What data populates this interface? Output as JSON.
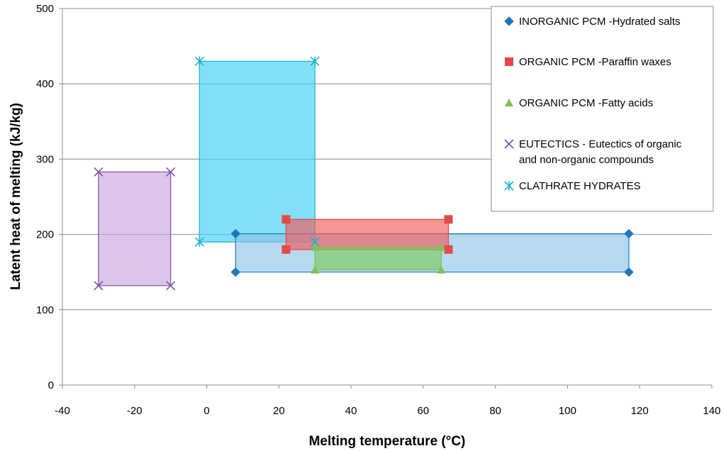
{
  "chart_data": {
    "type": "scatter",
    "title": "",
    "xlabel": "Melting temperature (°C)",
    "ylabel": "Latent heat of melting (kJ/kg)",
    "xlim": [
      -40,
      140
    ],
    "ylim": [
      0,
      500
    ],
    "x_ticks": [
      -40,
      -20,
      0,
      20,
      40,
      60,
      80,
      100,
      120,
      140
    ],
    "y_ticks": [
      0,
      100,
      200,
      300,
      400,
      500
    ],
    "grid": "horizontal",
    "legend_position": "top-right",
    "series": [
      {
        "name": "INORGANIC PCM -Hydrated salts",
        "legend_lines": [
          "INORGANIC PCM -Hydrated salts"
        ],
        "marker": "diamond",
        "color": "#1F77B8",
        "fill": "#8FC4E8",
        "points": [
          {
            "x": 8,
            "y": 150
          },
          {
            "x": 8,
            "y": 201
          },
          {
            "x": 117,
            "y": 201
          },
          {
            "x": 117,
            "y": 150
          }
        ]
      },
      {
        "name": "ORGANIC PCM -Paraffin waxes",
        "legend_lines": [
          "ORGANIC PCM -Paraffin waxes"
        ],
        "marker": "square",
        "color": "#E24A4A",
        "fill": "#F25A5A",
        "points": [
          {
            "x": 22,
            "y": 180
          },
          {
            "x": 22,
            "y": 220
          },
          {
            "x": 67,
            "y": 220
          },
          {
            "x": 67,
            "y": 180
          }
        ]
      },
      {
        "name": "ORGANIC PCM -Fatty acids",
        "legend_lines": [
          "ORGANIC PCM -Fatty acids"
        ],
        "marker": "triangle",
        "color": "#7DC255",
        "fill": "#7DCB5A",
        "points": [
          {
            "x": 30,
            "y": 153
          },
          {
            "x": 30,
            "y": 183
          },
          {
            "x": 65,
            "y": 183
          },
          {
            "x": 65,
            "y": 153
          }
        ]
      },
      {
        "name": "EUTECTICS - Eutectics of organic and non-organic compounds",
        "legend_lines": [
          "EUTECTICS - Eutectics of organic",
          "and non-organic compounds"
        ],
        "marker": "x",
        "color": "#7E4FA8",
        "fill": "#C8A6DB",
        "points": [
          {
            "x": -30,
            "y": 132
          },
          {
            "x": -30,
            "y": 283
          },
          {
            "x": -10,
            "y": 283
          },
          {
            "x": -10,
            "y": 132
          }
        ]
      },
      {
        "name": "CLATHRATE HYDRATES",
        "legend_lines": [
          "CLATHRATE HYDRATES"
        ],
        "marker": "star",
        "color": "#1BB3CC",
        "fill": "#3FD0F5",
        "points": [
          {
            "x": -2,
            "y": 190
          },
          {
            "x": -2,
            "y": 430
          },
          {
            "x": 30,
            "y": 430
          },
          {
            "x": 30,
            "y": 190
          }
        ]
      }
    ],
    "draw_order": [
      3,
      4,
      0,
      1,
      2
    ]
  }
}
